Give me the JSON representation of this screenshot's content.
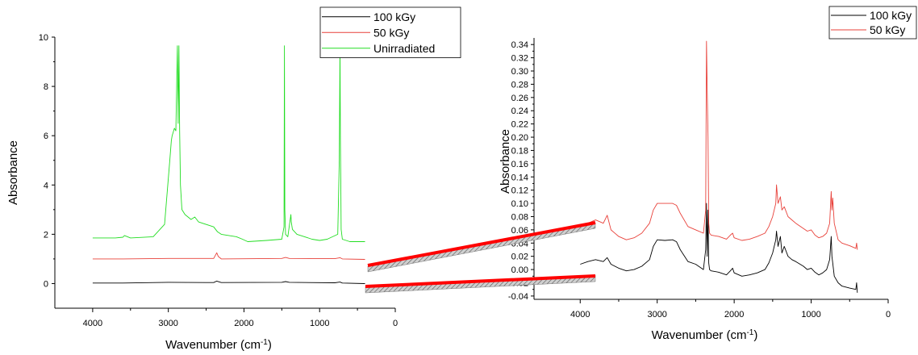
{
  "chart_data": [
    {
      "type": "line",
      "xlabel": "Wavenumber (cm",
      "xlabel_sup": "-1",
      "xlabel_tail": ")",
      "ylabel": "Absorbance",
      "xlim": [
        4500,
        0
      ],
      "ylim": [
        -1,
        10
      ],
      "xticks": [
        4000,
        3000,
        2000,
        1000,
        0
      ],
      "yticks": [
        0,
        2,
        4,
        6,
        8,
        10
      ],
      "legend_position": "top-right",
      "series": [
        {
          "name": "100 kGy",
          "color": "#000000",
          "x": [
            4000,
            3600,
            3000,
            2400,
            2360,
            2300,
            1500,
            1450,
            1400,
            800,
            730,
            700,
            400
          ],
          "y": [
            0.02,
            0.02,
            0.05,
            0.04,
            0.1,
            0.04,
            0.05,
            0.08,
            0.05,
            0.03,
            0.06,
            0.02,
            0.0
          ]
        },
        {
          "name": "50 kGy",
          "color": "#e8413a",
          "x": [
            4000,
            3600,
            3000,
            2400,
            2360,
            2340,
            2300,
            1500,
            1450,
            1400,
            800,
            730,
            700,
            400
          ],
          "y": [
            1.0,
            1.0,
            1.02,
            1.02,
            1.25,
            1.1,
            1.0,
            1.02,
            1.06,
            1.02,
            1.01,
            1.05,
            1.0,
            0.98
          ]
        },
        {
          "name": "Unirradiated",
          "color": "#22dd22",
          "x": [
            4000,
            3700,
            3600,
            3580,
            3500,
            3200,
            3050,
            2980,
            2960,
            2950,
            2920,
            2900,
            2880,
            2870,
            2860,
            2850,
            2840,
            2820,
            2780,
            2700,
            2650,
            2600,
            2400,
            2350,
            2300,
            2100,
            2020,
            1950,
            1700,
            1500,
            1470,
            1465,
            1460,
            1450,
            1420,
            1380,
            1375,
            1360,
            1300,
            1200,
            1100,
            1000,
            900,
            760,
            740,
            730,
            725,
            720,
            715,
            700,
            600,
            400
          ],
          "y": [
            1.85,
            1.85,
            1.88,
            1.95,
            1.85,
            1.9,
            2.4,
            5.0,
            5.8,
            6.0,
            6.3,
            6.2,
            9.65,
            6.5,
            9.65,
            6.2,
            4.0,
            3.0,
            2.8,
            2.6,
            2.7,
            2.5,
            2.3,
            2.1,
            2.0,
            1.9,
            1.8,
            1.7,
            1.75,
            1.8,
            2.3,
            9.65,
            3.0,
            2.0,
            1.9,
            2.8,
            2.5,
            2.2,
            2.0,
            1.9,
            1.8,
            1.75,
            1.8,
            2.0,
            5.0,
            9.65,
            5.8,
            4.0,
            2.2,
            1.8,
            1.7,
            1.7
          ]
        }
      ]
    },
    {
      "type": "line",
      "xlabel": "Wavenumber (cm",
      "xlabel_sup": "-1",
      "xlabel_tail": ")",
      "ylabel": "Absorbance",
      "xlim": [
        4600,
        0
      ],
      "ylim": [
        -0.045,
        0.35
      ],
      "xticks": [
        4000,
        3000,
        2000,
        1000,
        0
      ],
      "yticks": [
        -0.04,
        -0.02,
        0.0,
        0.02,
        0.04,
        0.06,
        0.08,
        0.1,
        0.12,
        0.14,
        0.16,
        0.18,
        0.2,
        0.22,
        0.24,
        0.26,
        0.28,
        0.3,
        0.32,
        0.34
      ],
      "ytick_labels": [
        "-0.04",
        "-0.02",
        "0.00",
        "0.02",
        "0.04",
        "0.06",
        "0.08",
        "0.10",
        "0.12",
        "0.14",
        "0.16",
        "0.18",
        "0.20",
        "0.22",
        "0.24",
        "0.26",
        "0.28",
        "0.30",
        "0.32",
        "0.34"
      ],
      "legend_position": "top-right",
      "series": [
        {
          "name": "100 kGy",
          "color": "#000000",
          "x": [
            4000,
            3900,
            3800,
            3700,
            3650,
            3600,
            3500,
            3400,
            3300,
            3200,
            3100,
            3050,
            3000,
            2900,
            2800,
            2750,
            2700,
            2600,
            2500,
            2400,
            2370,
            2360,
            2350,
            2340,
            2330,
            2320,
            2300,
            2200,
            2100,
            2050,
            2020,
            2000,
            1900,
            1800,
            1700,
            1600,
            1550,
            1500,
            1460,
            1450,
            1430,
            1400,
            1380,
            1350,
            1300,
            1250,
            1200,
            1100,
            1050,
            1000,
            950,
            900,
            850,
            800,
            760,
            740,
            730,
            720,
            700,
            650,
            600,
            500,
            420,
            410,
            400
          ],
          "y": [
            0.008,
            0.012,
            0.015,
            0.012,
            0.018,
            0.008,
            0.002,
            -0.002,
            0.0,
            0.005,
            0.015,
            0.035,
            0.045,
            0.044,
            0.045,
            0.042,
            0.03,
            0.012,
            0.008,
            0.0,
            0.03,
            0.1,
            0.02,
            0.09,
            0.01,
            0.0,
            -0.002,
            -0.004,
            -0.008,
            -0.002,
            0.002,
            -0.005,
            -0.01,
            -0.008,
            -0.005,
            0.0,
            0.01,
            0.025,
            0.045,
            0.058,
            0.035,
            0.05,
            0.025,
            0.035,
            0.02,
            0.015,
            0.012,
            0.005,
            0.0,
            0.002,
            -0.004,
            -0.008,
            -0.005,
            0.0,
            0.015,
            0.05,
            0.02,
            0.01,
            -0.01,
            -0.02,
            -0.025,
            -0.028,
            -0.03,
            -0.02,
            -0.035
          ]
        },
        {
          "name": "50 kGy",
          "color": "#e8413a",
          "x": [
            4000,
            3900,
            3800,
            3700,
            3650,
            3600,
            3500,
            3400,
            3300,
            3200,
            3100,
            3050,
            3000,
            2900,
            2800,
            2750,
            2700,
            2600,
            2500,
            2400,
            2370,
            2360,
            2350,
            2340,
            2330,
            2320,
            2300,
            2200,
            2100,
            2050,
            2020,
            2000,
            1900,
            1800,
            1700,
            1600,
            1550,
            1500,
            1460,
            1450,
            1430,
            1400,
            1380,
            1350,
            1300,
            1250,
            1200,
            1100,
            1050,
            1000,
            950,
            900,
            850,
            800,
            760,
            740,
            730,
            720,
            700,
            650,
            600,
            500,
            420,
            410,
            400
          ],
          "y": [
            0.062,
            0.07,
            0.075,
            0.07,
            0.082,
            0.06,
            0.05,
            0.045,
            0.048,
            0.055,
            0.07,
            0.09,
            0.1,
            0.1,
            0.1,
            0.097,
            0.085,
            0.065,
            0.06,
            0.055,
            0.09,
            0.345,
            0.27,
            0.2,
            0.07,
            0.055,
            0.052,
            0.05,
            0.046,
            0.052,
            0.055,
            0.048,
            0.044,
            0.046,
            0.05,
            0.055,
            0.065,
            0.08,
            0.1,
            0.128,
            0.1,
            0.11,
            0.09,
            0.095,
            0.08,
            0.075,
            0.07,
            0.062,
            0.058,
            0.06,
            0.052,
            0.048,
            0.05,
            0.055,
            0.07,
            0.118,
            0.09,
            0.108,
            0.07,
            0.045,
            0.04,
            0.036,
            0.032,
            0.04,
            0.03
          ]
        }
      ]
    }
  ]
}
